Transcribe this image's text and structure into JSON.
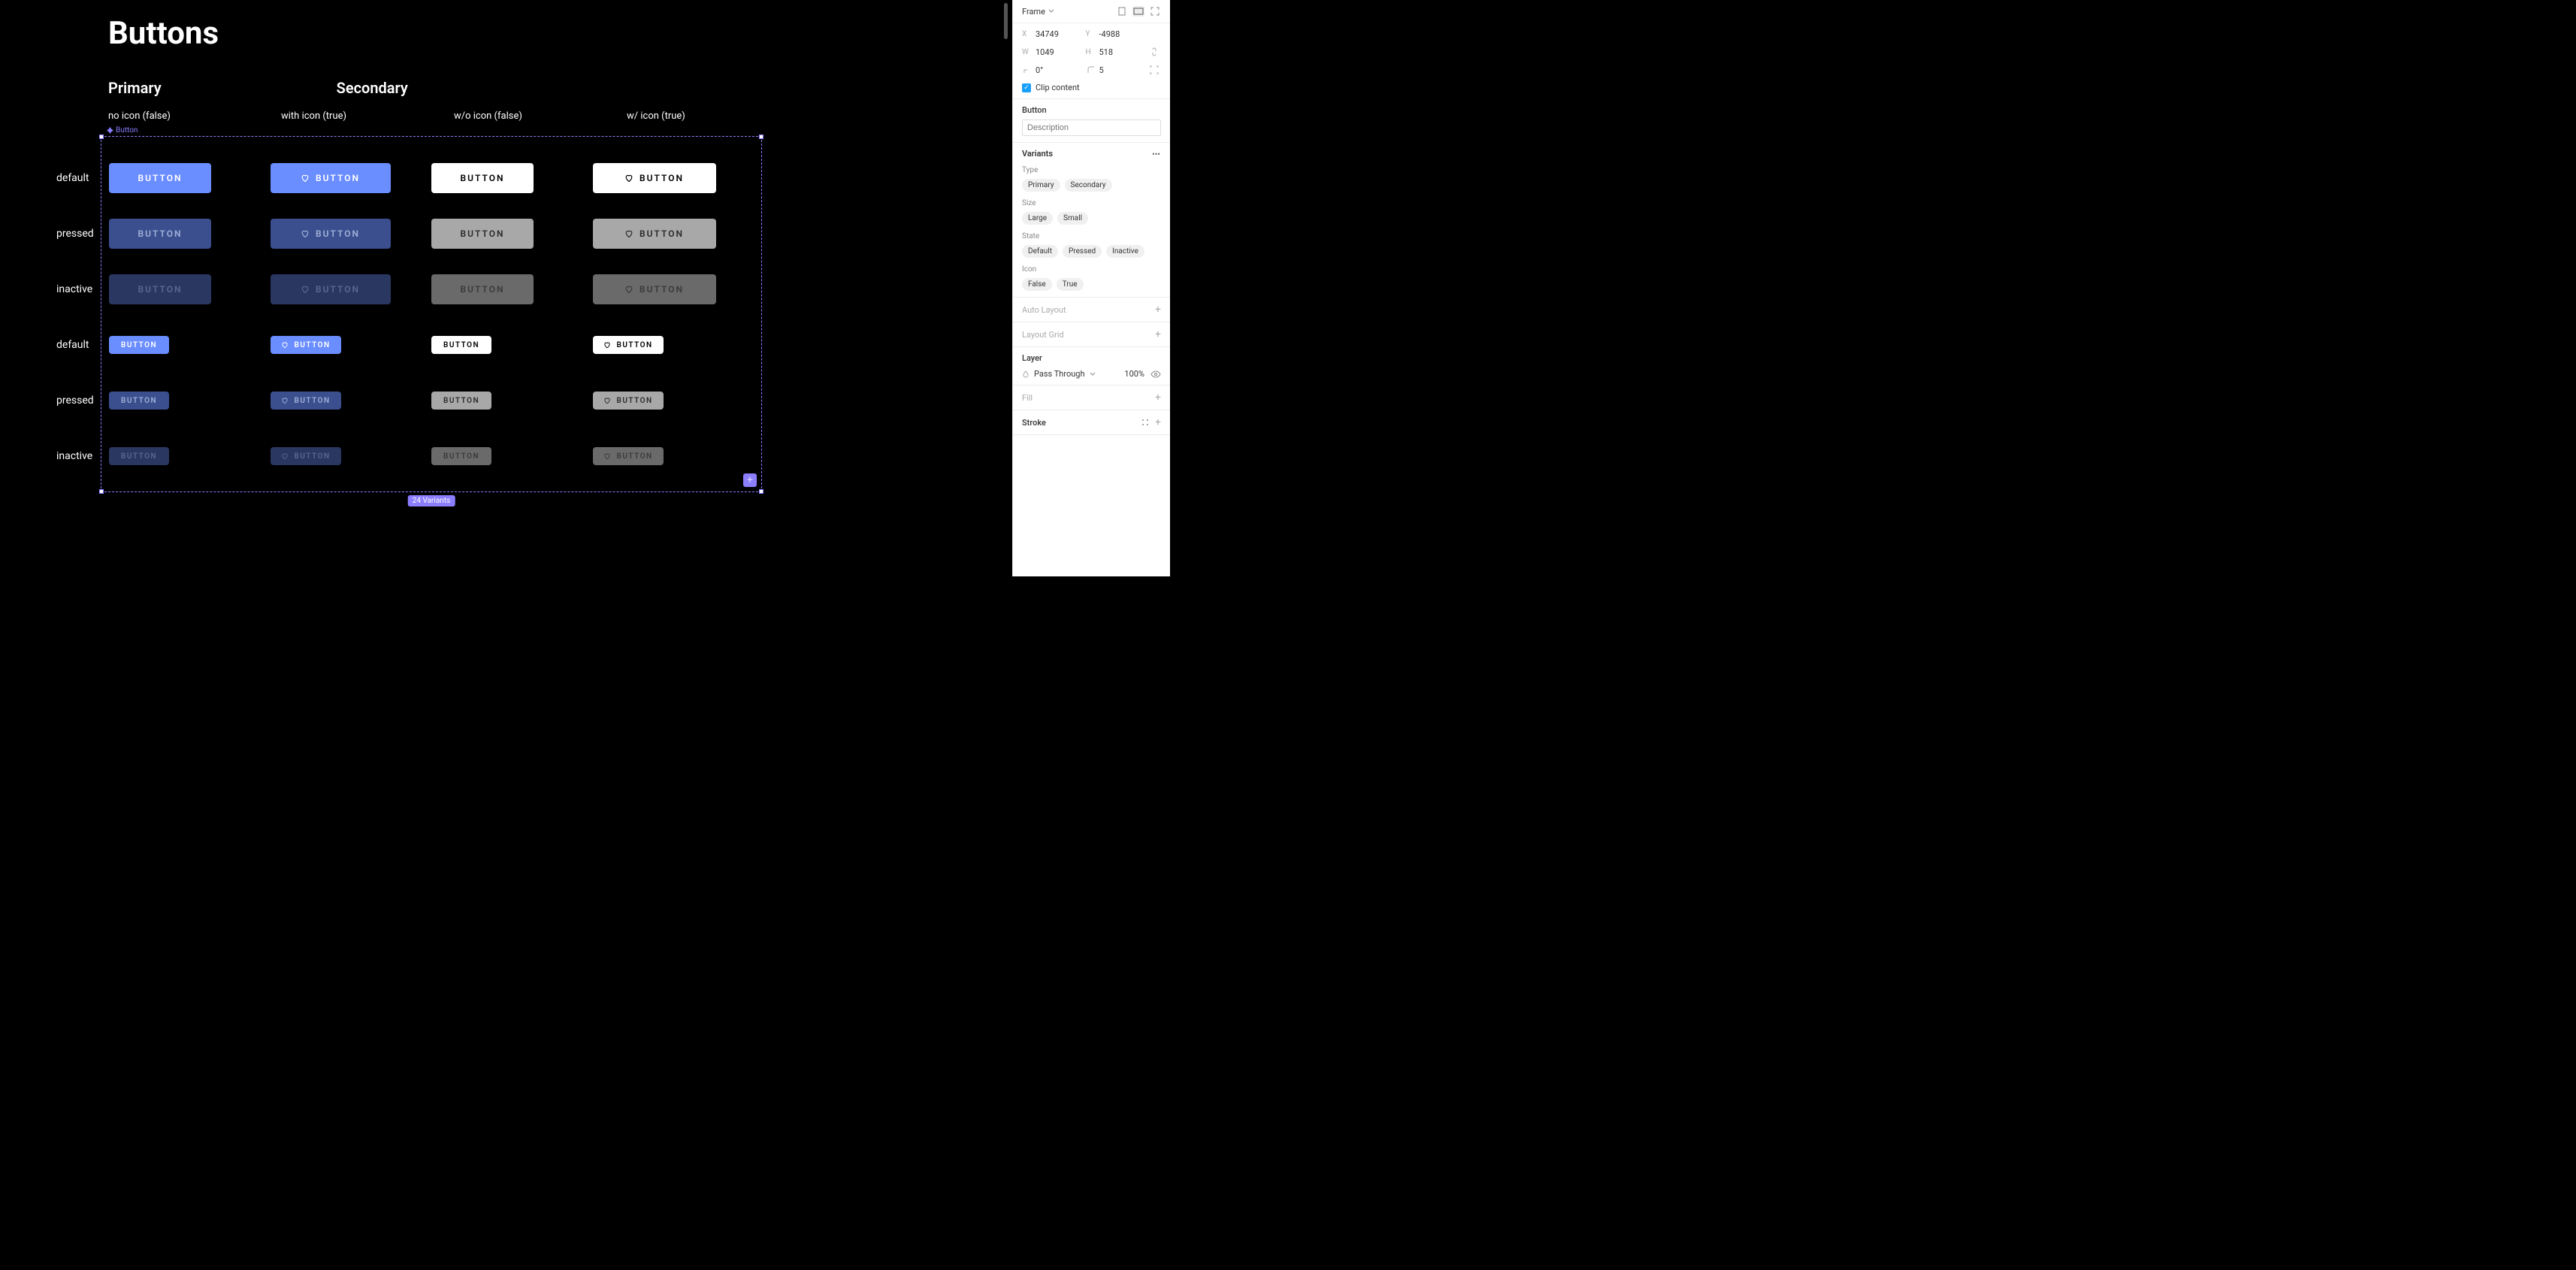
{
  "canvas": {
    "title": "Buttons",
    "sections": {
      "primary": "Primary",
      "secondary": "Secondary"
    },
    "columns": {
      "primary_no_icon": "no icon (false)",
      "primary_with_icon": "with icon (true)",
      "secondary_no_icon": "w/o icon (false)",
      "secondary_with_icon": "w/ icon (true)"
    },
    "frame_label": "Button",
    "sizes": {
      "large": "Large",
      "small": "Small"
    },
    "states": {
      "default": "default",
      "pressed": "pressed",
      "inactive": "inactive"
    },
    "button_text": "BUTTON",
    "variants_badge": "24 Variants",
    "colors": {
      "primary_default_bg": "#6a8dff",
      "primary_default_fg": "#ffffff",
      "primary_pressed_bg": "#3b4f8f",
      "primary_pressed_fg": "#a0b0d8",
      "primary_inactive_bg": "#2a3760",
      "primary_inactive_fg": "#5a6890",
      "secondary_default_bg": "#ffffff",
      "secondary_default_fg": "#000000",
      "secondary_pressed_bg": "#a8a8a8",
      "secondary_pressed_fg": "#2a2a2a",
      "secondary_inactive_bg": "#6a6a6a",
      "secondary_inactive_fg": "#3a3a3a"
    }
  },
  "panel": {
    "frame_label": "Frame",
    "props": {
      "x_key": "X",
      "x_val": "34749",
      "y_key": "Y",
      "y_val": "-4988",
      "w_key": "W",
      "w_val": "1049",
      "h_key": "H",
      "h_val": "518",
      "rot_val": "0°",
      "radius_val": "5"
    },
    "clip_content": "Clip content",
    "component_name": "Button",
    "description_placeholder": "Description",
    "variants_label": "Variants",
    "variant_props": {
      "type": {
        "label": "Type",
        "options": [
          "Primary",
          "Secondary"
        ]
      },
      "size": {
        "label": "Size",
        "options": [
          "Large",
          "Small"
        ]
      },
      "state": {
        "label": "State",
        "options": [
          "Default",
          "Pressed",
          "Inactive"
        ]
      },
      "icon": {
        "label": "Icon",
        "options": [
          "False",
          "True"
        ]
      }
    },
    "auto_layout": "Auto Layout",
    "layout_grid": "Layout Grid",
    "layer_label": "Layer",
    "blend_mode": "Pass Through",
    "opacity": "100%",
    "fill_label": "Fill",
    "stroke_label": "Stroke"
  }
}
